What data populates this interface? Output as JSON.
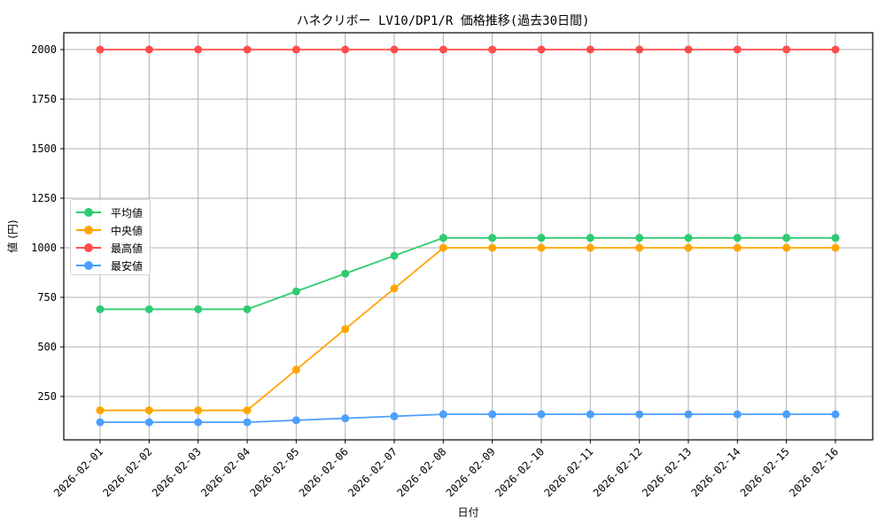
{
  "chart_data": {
    "type": "line",
    "title": "ハネクリボー LV10/DP1/R 価格推移(過去30日間)",
    "xlabel": "日付",
    "ylabel": "値 (円)",
    "categories": [
      "2026-02-01",
      "2026-02-02",
      "2026-02-03",
      "2026-02-04",
      "2026-02-05",
      "2026-02-06",
      "2026-02-07",
      "2026-02-08",
      "2026-02-09",
      "2026-02-10",
      "2026-02-11",
      "2026-02-12",
      "2026-02-13",
      "2026-02-14",
      "2026-02-15",
      "2026-02-16"
    ],
    "series": [
      {
        "name": "平均値",
        "color": "#2ecc71",
        "values": [
          690,
          690,
          690,
          690,
          780,
          870,
          960,
          1050,
          1050,
          1050,
          1050,
          1050,
          1050,
          1050,
          1050,
          1050
        ]
      },
      {
        "name": "中央値",
        "color": "#ffa500",
        "values": [
          180,
          180,
          180,
          180,
          385,
          590,
          795,
          1000,
          1000,
          1000,
          1000,
          1000,
          1000,
          1000,
          1000,
          1000
        ]
      },
      {
        "name": "最高値",
        "color": "#ff4d4d",
        "values": [
          2000,
          2000,
          2000,
          2000,
          2000,
          2000,
          2000,
          2000,
          2000,
          2000,
          2000,
          2000,
          2000,
          2000,
          2000,
          2000
        ]
      },
      {
        "name": "最安値",
        "color": "#4d9fff",
        "values": [
          120,
          120,
          120,
          120,
          130,
          140,
          150,
          160,
          160,
          160,
          160,
          160,
          160,
          160,
          160,
          160
        ]
      }
    ],
    "yticks": [
      250,
      500,
      750,
      1000,
      1250,
      1500,
      1750,
      2000
    ],
    "ylim": [
      31,
      2090
    ],
    "grid": true,
    "legend_position": "center left",
    "marker": "circle"
  }
}
